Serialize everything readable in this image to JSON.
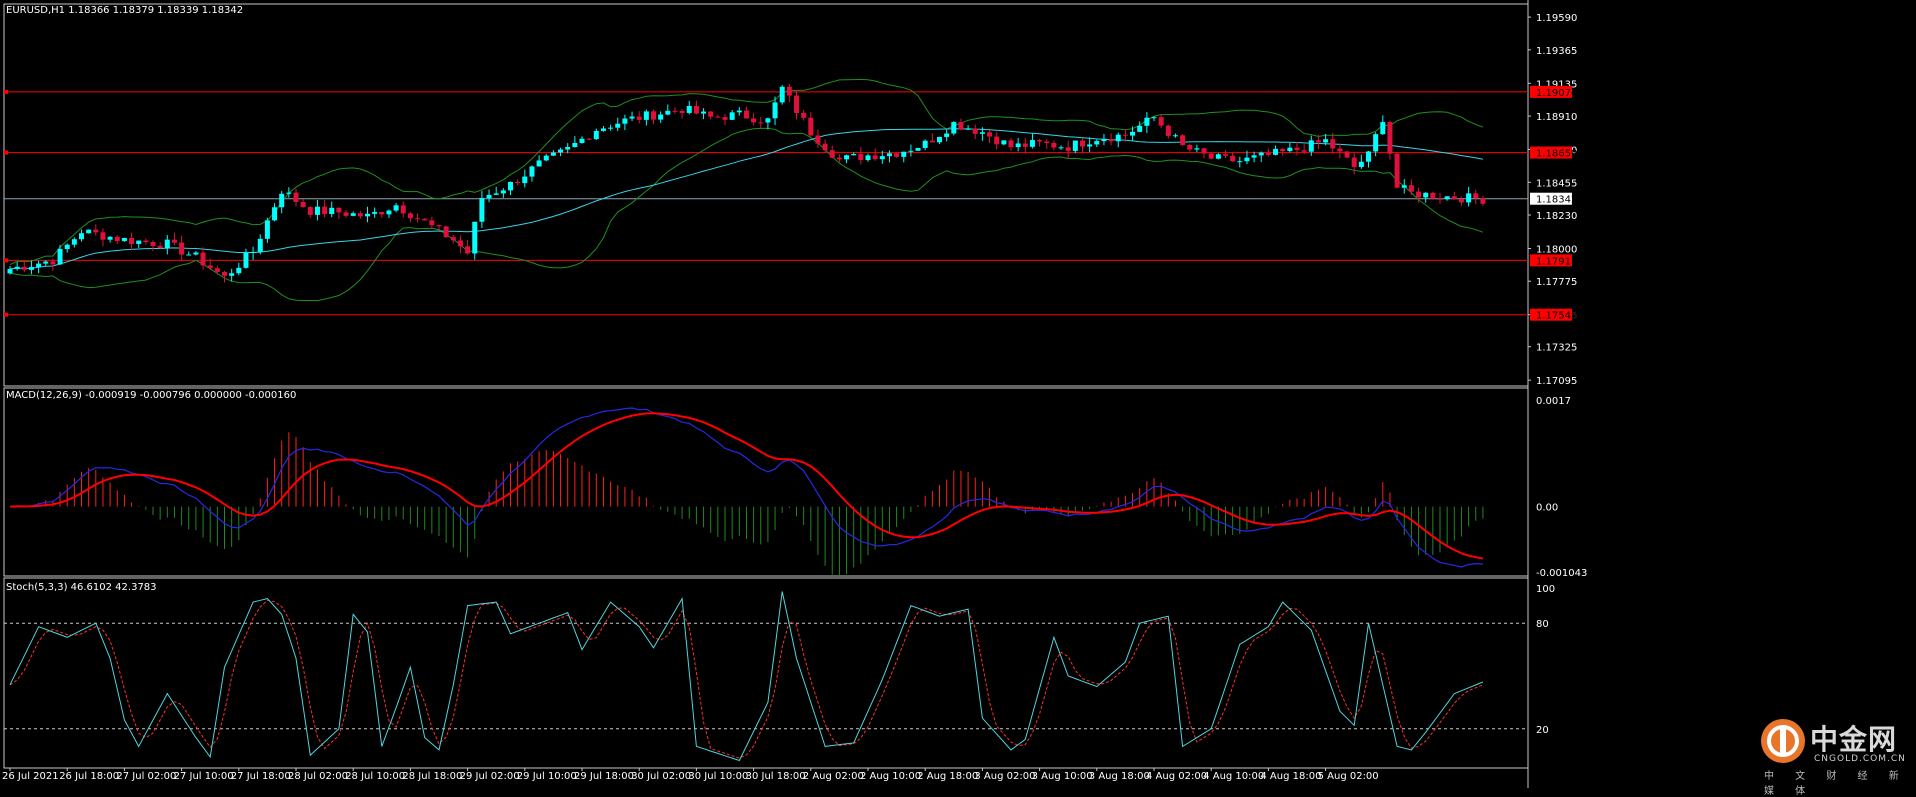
{
  "colors": {
    "background": "#000000",
    "border": "#c8c8c8",
    "bull": "#00ffff",
    "bear": "#e0103c",
    "level_line": "#ff0000",
    "current_price_line": "#8ea3b8",
    "bollinger": "#1f8f1f",
    "moving_average": "#35d4ea",
    "macd_signal": "#ff0000",
    "macd_main": "#2828e6",
    "hist_positive": "#ff1e1e",
    "hist_negative": "#1f8a1f",
    "stoch_main": "#4fd6dc",
    "stoch_signal": "#ff3030"
  },
  "price_panel": {
    "title": "EURUSD,H1  1.18366 1.18379 1.18339 1.18342",
    "ylim": [
      1.17055,
      1.1968
    ],
    "tick_labels": [
      "1.19590",
      "1.19365",
      "1.19135",
      "1.18910",
      "1.18680",
      "1.18455",
      "1.18230",
      "1.18000",
      "1.17775",
      "1.17545",
      "1.17325",
      "1.17095"
    ],
    "level_labels": [
      "1.19076",
      "1.18659",
      "1.17918",
      "1.17545"
    ],
    "current_label": "1.18342"
  },
  "macd_panel": {
    "title": "MACD(12,26,9) -0.000919 -0.000796 0.000000 -0.000160",
    "tick_labels": [
      "0.0017",
      "0.00",
      "-0.001043"
    ]
  },
  "stoch_panel": {
    "title": "Stoch(5,3,3) 46.6102 42.3783",
    "tick_labels": [
      "100",
      "80",
      "20"
    ]
  },
  "time_labels": [
    "26 Jul 2021",
    "26 Jul 18:00",
    "27 Jul 02:00",
    "27 Jul 10:00",
    "27 Jul 18:00",
    "28 Jul 02:00",
    "28 Jul 10:00",
    "28 Jul 18:00",
    "29 Jul 02:00",
    "29 Jul 10:00",
    "29 Jul 18:00",
    "30 Jul 02:00",
    "30 Jul 10:00",
    "30 Jul 18:00",
    "2 Aug 02:00",
    "2 Aug 10:00",
    "2 Aug 18:00",
    "3 Aug 02:00",
    "3 Aug 10:00",
    "3 Aug 18:00",
    "4 Aug 02:00",
    "4 Aug 10:00",
    "4 Aug 18:00",
    "5 Aug 02:00"
  ],
  "watermark": {
    "brand": "中金网",
    "site": "CNGOLD.COM.CN",
    "tagline": "中 文 财 经 新 媒 体"
  },
  "chart_data": [
    {
      "type": "candlestick",
      "symbol": "EURUSD",
      "timeframe": "H1",
      "ohlc_last": {
        "open": 1.18366,
        "high": 1.18379,
        "low": 1.18339,
        "close": 1.18342
      },
      "horizontal_levels": [
        1.19076,
        1.18659,
        1.17918,
        1.17545
      ],
      "current_price": 1.18342,
      "ylim": [
        1.17055,
        1.1968
      ],
      "close_path": [
        [
          0,
          1.1786
        ],
        [
          6,
          1.1792
        ],
        [
          10,
          1.1812
        ],
        [
          16,
          1.1806
        ],
        [
          22,
          1.1803
        ],
        [
          26,
          1.1794
        ],
        [
          30,
          1.178
        ],
        [
          34,
          1.1798
        ],
        [
          38,
          1.184
        ],
        [
          42,
          1.1826
        ],
        [
          46,
          1.1825
        ],
        [
          50,
          1.1822
        ],
        [
          54,
          1.183
        ],
        [
          58,
          1.1818
        ],
        [
          62,
          1.1806
        ],
        [
          64,
          1.1797
        ],
        [
          66,
          1.1835
        ],
        [
          70,
          1.1844
        ],
        [
          74,
          1.1858
        ],
        [
          78,
          1.1868
        ],
        [
          82,
          1.1882
        ],
        [
          86,
          1.1888
        ],
        [
          90,
          1.1892
        ],
        [
          94,
          1.1896
        ],
        [
          98,
          1.189
        ],
        [
          102,
          1.1892
        ],
        [
          106,
          1.1888
        ],
        [
          108,
          1.191
        ],
        [
          112,
          1.188
        ],
        [
          116,
          1.1861
        ],
        [
          120,
          1.1864
        ],
        [
          124,
          1.1866
        ],
        [
          128,
          1.1872
        ],
        [
          132,
          1.1886
        ],
        [
          136,
          1.188
        ],
        [
          140,
          1.187
        ],
        [
          144,
          1.1872
        ],
        [
          148,
          1.187
        ],
        [
          152,
          1.1876
        ],
        [
          156,
          1.1878
        ],
        [
          160,
          1.189
        ],
        [
          164,
          1.187
        ],
        [
          168,
          1.1862
        ],
        [
          172,
          1.186
        ],
        [
          176,
          1.1864
        ],
        [
          180,
          1.1868
        ],
        [
          184,
          1.1874
        ],
        [
          188,
          1.1856
        ],
        [
          190,
          1.1864
        ],
        [
          192,
          1.189
        ],
        [
          194,
          1.1842
        ],
        [
          196,
          1.1838
        ],
        [
          200,
          1.1836
        ],
        [
          206,
          1.1834
        ]
      ]
    },
    {
      "type": "line",
      "name": "MACD(12,26,9)",
      "values_last": {
        "main": -0.000919,
        "signal": -0.000796
      },
      "ylim": [
        -0.001043,
        0.0017
      ]
    },
    {
      "type": "line",
      "name": "Stoch(5,3,3)",
      "values_last": {
        "main": 46.6102,
        "signal": 42.3783
      },
      "ylim": [
        0,
        100
      ],
      "levels": [
        80,
        20
      ],
      "main_path": [
        [
          0,
          45
        ],
        [
          4,
          78
        ],
        [
          8,
          72
        ],
        [
          12,
          80
        ],
        [
          14,
          60
        ],
        [
          16,
          25
        ],
        [
          18,
          10
        ],
        [
          22,
          40
        ],
        [
          26,
          15
        ],
        [
          28,
          4
        ],
        [
          30,
          55
        ],
        [
          34,
          92
        ],
        [
          36,
          94
        ],
        [
          38,
          85
        ],
        [
          40,
          60
        ],
        [
          42,
          5
        ],
        [
          46,
          20
        ],
        [
          48,
          85
        ],
        [
          50,
          75
        ],
        [
          52,
          10
        ],
        [
          54,
          32
        ],
        [
          56,
          55
        ],
        [
          58,
          15
        ],
        [
          60,
          8
        ],
        [
          62,
          45
        ],
        [
          64,
          90
        ],
        [
          68,
          92
        ],
        [
          70,
          74
        ],
        [
          74,
          80
        ],
        [
          78,
          86
        ],
        [
          80,
          65
        ],
        [
          84,
          92
        ],
        [
          88,
          78
        ],
        [
          90,
          66
        ],
        [
          94,
          94
        ],
        [
          96,
          10
        ],
        [
          102,
          2
        ],
        [
          106,
          35
        ],
        [
          108,
          98
        ],
        [
          110,
          60
        ],
        [
          114,
          10
        ],
        [
          118,
          12
        ],
        [
          122,
          48
        ],
        [
          126,
          90
        ],
        [
          130,
          84
        ],
        [
          134,
          88
        ],
        [
          136,
          26
        ],
        [
          140,
          8
        ],
        [
          142,
          14
        ],
        [
          146,
          72
        ],
        [
          148,
          50
        ],
        [
          152,
          44
        ],
        [
          156,
          58
        ],
        [
          158,
          80
        ],
        [
          162,
          84
        ],
        [
          164,
          10
        ],
        [
          168,
          20
        ],
        [
          172,
          68
        ],
        [
          176,
          78
        ],
        [
          178,
          92
        ],
        [
          182,
          76
        ],
        [
          186,
          30
        ],
        [
          188,
          22
        ],
        [
          190,
          80
        ],
        [
          194,
          10
        ],
        [
          196,
          8
        ],
        [
          198,
          18
        ],
        [
          202,
          40
        ],
        [
          206,
          46.6
        ]
      ]
    }
  ]
}
